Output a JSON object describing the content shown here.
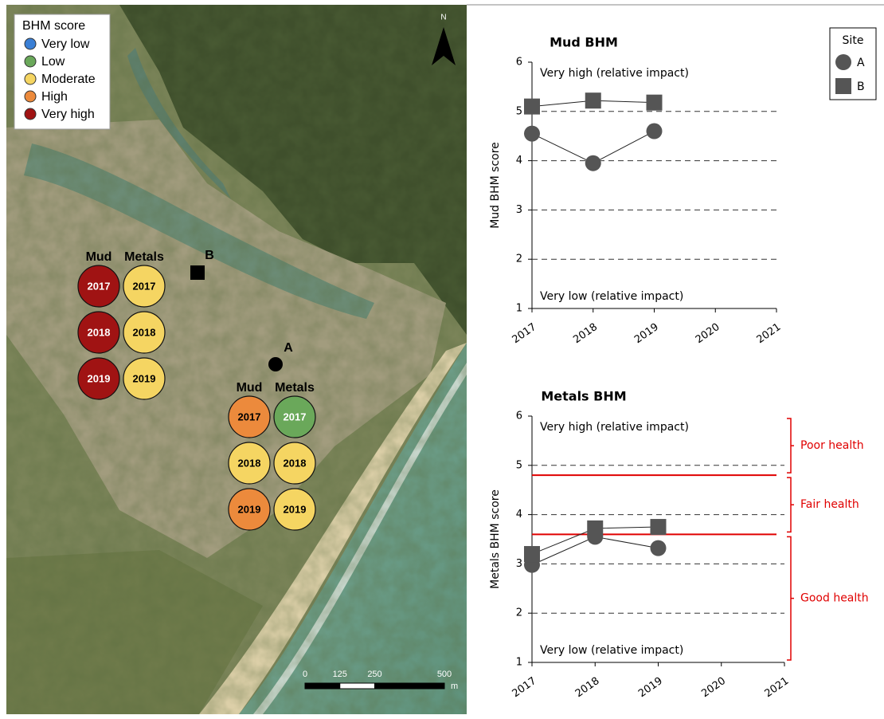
{
  "map": {
    "legend": {
      "title": "BHM score",
      "items": [
        {
          "label": "Very low",
          "color": "#3a7fd5"
        },
        {
          "label": "Low",
          "color": "#6aa85a"
        },
        {
          "label": "Moderate",
          "color": "#f5d562"
        },
        {
          "label": "High",
          "color": "#ec8a3c"
        },
        {
          "label": "Very high",
          "color": "#a01313"
        }
      ]
    },
    "north": "N",
    "groups": [
      {
        "headers": [
          "Mud",
          "Metals"
        ],
        "rows": [
          {
            "year": "2017",
            "colors": [
              "#a01313",
              "#f5d562"
            ]
          },
          {
            "year": "2018",
            "colors": [
              "#a01313",
              "#f5d562"
            ]
          },
          {
            "year": "2019",
            "colors": [
              "#a01313",
              "#f5d562"
            ]
          }
        ]
      },
      {
        "headers": [
          "Mud",
          "Metals"
        ],
        "rows": [
          {
            "year": "2017",
            "colors": [
              "#ec8a3c",
              "#6aa85a"
            ]
          },
          {
            "year": "2018",
            "colors": [
              "#f5d562",
              "#f5d562"
            ]
          },
          {
            "year": "2019",
            "colors": [
              "#ec8a3c",
              "#f5d562"
            ]
          }
        ]
      }
    ],
    "sites": [
      {
        "label": "B",
        "marker": "square"
      },
      {
        "label": "A",
        "marker": "circle"
      }
    ],
    "scale": {
      "ticks": [
        0,
        125,
        250,
        500
      ],
      "unit": "m"
    }
  },
  "chart_data": [
    {
      "type": "line",
      "title": "Mud BHM",
      "y_label": "Mud BHM score",
      "x": [
        2017,
        2018,
        2019
      ],
      "xlim": [
        2017,
        2021
      ],
      "xticks": [
        2017,
        2018,
        2019,
        2020,
        2021
      ],
      "ylim": [
        1,
        6
      ],
      "yticks": [
        1,
        2,
        3,
        4,
        5,
        6
      ],
      "grid": true,
      "annotations": [
        "Very high (relative impact)",
        "Very low (relative impact)"
      ],
      "legend": {
        "title": "Site",
        "position": "upper right"
      },
      "series": [
        {
          "name": "A",
          "marker": "circle",
          "color": "#555555",
          "values": [
            4.55,
            3.95,
            4.6
          ]
        },
        {
          "name": "B",
          "marker": "square",
          "color": "#555555",
          "values": [
            5.1,
            5.22,
            5.18
          ]
        }
      ]
    },
    {
      "type": "line",
      "title": "Metals BHM",
      "y_label": "Metals BHM score",
      "x": [
        2017,
        2018,
        2019
      ],
      "xlim": [
        2017,
        2021
      ],
      "xticks": [
        2017,
        2018,
        2019,
        2020,
        2021
      ],
      "ylim": [
        1,
        6
      ],
      "yticks": [
        1,
        2,
        3,
        4,
        5,
        6
      ],
      "grid": true,
      "annotations": [
        "Very high (relative impact)",
        "Very low (relative impact)"
      ],
      "thresholds": [
        4.8,
        3.6
      ],
      "threshold_color": "#e00000",
      "bands": [
        {
          "label": "Poor health",
          "range": [
            4.8,
            6
          ]
        },
        {
          "label": "Fair health",
          "range": [
            3.6,
            4.8
          ]
        },
        {
          "label": "Good health",
          "range": [
            1,
            3.6
          ]
        }
      ],
      "series": [
        {
          "name": "A",
          "marker": "circle",
          "color": "#555555",
          "values": [
            2.98,
            3.55,
            3.32
          ]
        },
        {
          "name": "B",
          "marker": "square",
          "color": "#555555",
          "values": [
            3.2,
            3.72,
            3.75
          ]
        }
      ]
    }
  ]
}
